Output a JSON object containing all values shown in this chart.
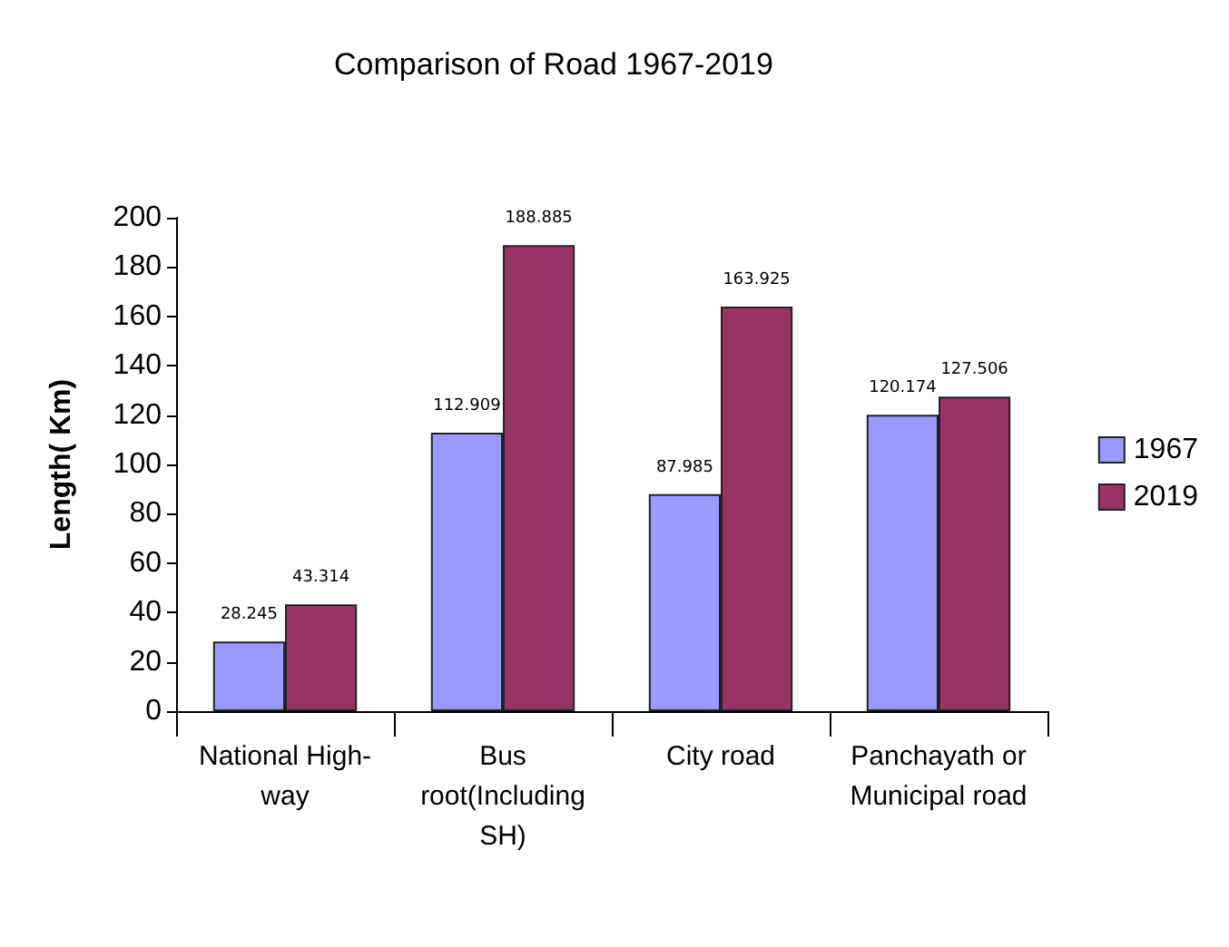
{
  "chart_data": {
    "type": "bar",
    "title": "Comparison of Road 1967-2019",
    "ylabel": "Length( Km)",
    "categories": [
      "National High-\nway",
      "Bus\nroot(Including\nSH)",
      "City road",
      "Panchayath or\nMunicipal road"
    ],
    "series": [
      {
        "name": "1967",
        "color": "#9999ff",
        "values": [
          28.245,
          112.909,
          87.985,
          120.174
        ]
      },
      {
        "name": "2019",
        "color": "#993366",
        "values": [
          43.314,
          188.885,
          163.925,
          127.506
        ]
      }
    ],
    "ylim": [
      0,
      200
    ],
    "yticks": [
      0,
      20,
      40,
      60,
      80,
      100,
      120,
      140,
      160,
      180,
      200
    ],
    "grid": false,
    "legend": "right",
    "data_labels": true
  }
}
